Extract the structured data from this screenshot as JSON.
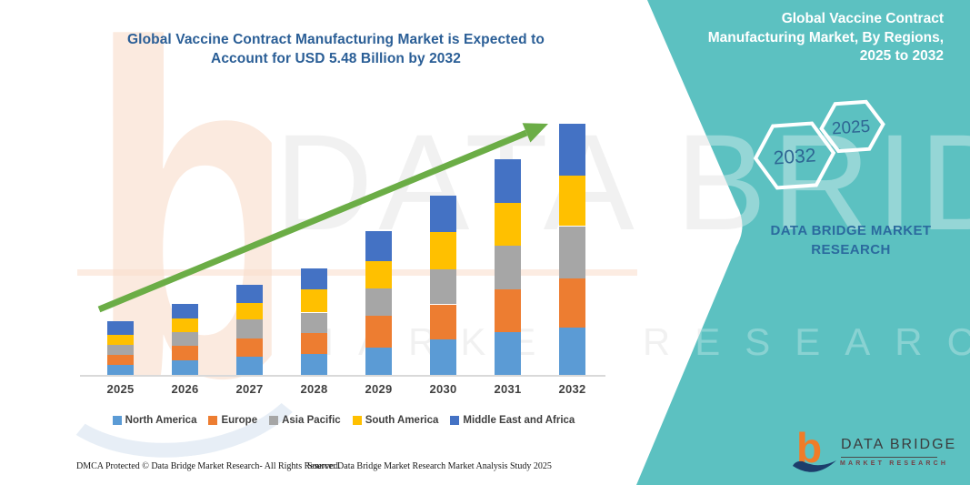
{
  "header": {
    "title": "Global Vaccine Contract Manufacturing Market is Expected to Account for USD 5.48 Billion by 2032"
  },
  "chart_data": {
    "type": "bar",
    "stacked": true,
    "title": "Global Vaccine Contract Manufacturing Market is Expected to Account for USD 5.48 Billion by 2032",
    "unit": "USD Billion (estimated from bar heights; 2032 total stated as 5.48)",
    "categories": [
      "2025",
      "2026",
      "2027",
      "2028",
      "2029",
      "2030",
      "2031",
      "2032"
    ],
    "series": [
      {
        "name": "North America",
        "color": "#5B9BD5",
        "values": [
          0.22,
          0.31,
          0.4,
          0.46,
          0.6,
          0.78,
          0.93,
          1.04
        ]
      },
      {
        "name": "Europe",
        "color": "#ED7D31",
        "values": [
          0.22,
          0.32,
          0.4,
          0.46,
          0.7,
          0.76,
          0.94,
          1.06
        ]
      },
      {
        "name": "Asia Pacific",
        "color": "#A6A6A6",
        "values": [
          0.22,
          0.3,
          0.41,
          0.44,
          0.58,
          0.76,
          0.95,
          1.15
        ]
      },
      {
        "name": "South America",
        "color": "#FFC000",
        "values": [
          0.22,
          0.31,
          0.36,
          0.5,
          0.61,
          0.82,
          0.94,
          1.11
        ]
      },
      {
        "name": "Middle East and Africa",
        "color": "#4472C4",
        "values": [
          0.29,
          0.31,
          0.4,
          0.47,
          0.65,
          0.79,
          0.95,
          1.12
        ]
      }
    ],
    "totals": [
      1.17,
      1.55,
      1.97,
      2.33,
      3.14,
      3.91,
      4.71,
      5.48
    ],
    "xlabel": "",
    "ylabel": "",
    "ylim": [
      0,
      5.6
    ],
    "grid": false,
    "y_axis_visible": false,
    "legend_position": "bottom",
    "trend_arrow": true
  },
  "panel": {
    "title": "Global Vaccine Contract Manufacturing Market, By Regions, 2025 to 2032",
    "hexagons": [
      {
        "label": "2032"
      },
      {
        "label": "2025"
      }
    ],
    "brand_text": "DATA BRIDGE MARKET RESEARCH",
    "logo": {
      "letter": "b",
      "brand": "DATA BRIDGE",
      "tagline": "MARKET RESEARCH"
    }
  },
  "watermark": {
    "letter": "b",
    "line1": "DATA BRIDGE",
    "line2": "MARKET RESEARCH"
  },
  "footer": {
    "dmca": "DMCA Protected © Data Bridge Market Research-  All Rights Reserved.",
    "source": "Source: Data Bridge Market Research  Market Analysis Study 2025"
  },
  "colors": {
    "panel_teal": "#5CC1C1",
    "title_blue": "#2A5E96",
    "arrow_green": "#6BAD46",
    "hexagon_text": "#2E6693",
    "axis_gray": "#D9D9D9",
    "label_gray": "#3F3F3F"
  }
}
